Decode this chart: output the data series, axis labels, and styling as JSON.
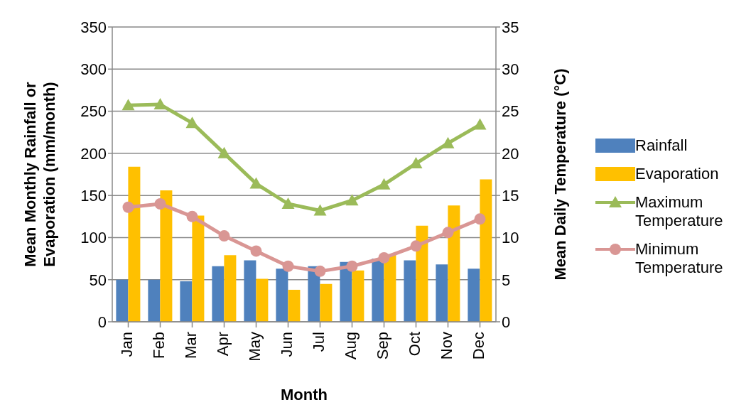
{
  "chart_data": {
    "type": "bar",
    "xlabel": "Month",
    "ylabel": "Mean Monthly Rainfall or Evaporation (mm/month)",
    "y2label": "Mean Daily Temperature (°C)",
    "categories": [
      "Jan",
      "Feb",
      "Mar",
      "Apr",
      "May",
      "Jun",
      "Jul",
      "Aug",
      "Sep",
      "Oct",
      "Nov",
      "Dec"
    ],
    "series": [
      {
        "name": "Rainfall",
        "color": "#4f81bd",
        "values": [
          50,
          50,
          48,
          66,
          73,
          63,
          66,
          71,
          75,
          73,
          68,
          63
        ]
      },
      {
        "name": "Evaporation",
        "color": "#ffc000",
        "values": [
          184,
          156,
          126,
          79,
          51,
          38,
          45,
          61,
          80,
          114,
          138,
          169
        ]
      },
      {
        "name": "Maximum Temperature",
        "type": "line",
        "axis": "y2",
        "marker": "triangle",
        "color": "#9bbb59",
        "values": [
          25.7,
          25.8,
          23.6,
          20,
          16.4,
          14,
          13.2,
          14.4,
          16.3,
          18.8,
          21.2,
          23.4
        ]
      },
      {
        "name": "Minimum Temperature",
        "type": "line",
        "axis": "y2",
        "marker": "circle",
        "color": "#d99694",
        "values": [
          13.6,
          14,
          12.5,
          10.2,
          8.4,
          6.6,
          6,
          6.6,
          7.6,
          9,
          10.6,
          12.2
        ]
      }
    ],
    "ylim": [
      0,
      350
    ],
    "yticks": [
      0,
      50,
      100,
      150,
      200,
      250,
      300,
      350
    ],
    "y2lim": [
      0,
      35
    ],
    "y2ticks": [
      0,
      5,
      10,
      15,
      20,
      25,
      30,
      35
    ],
    "grid": "y",
    "legend": "right"
  }
}
